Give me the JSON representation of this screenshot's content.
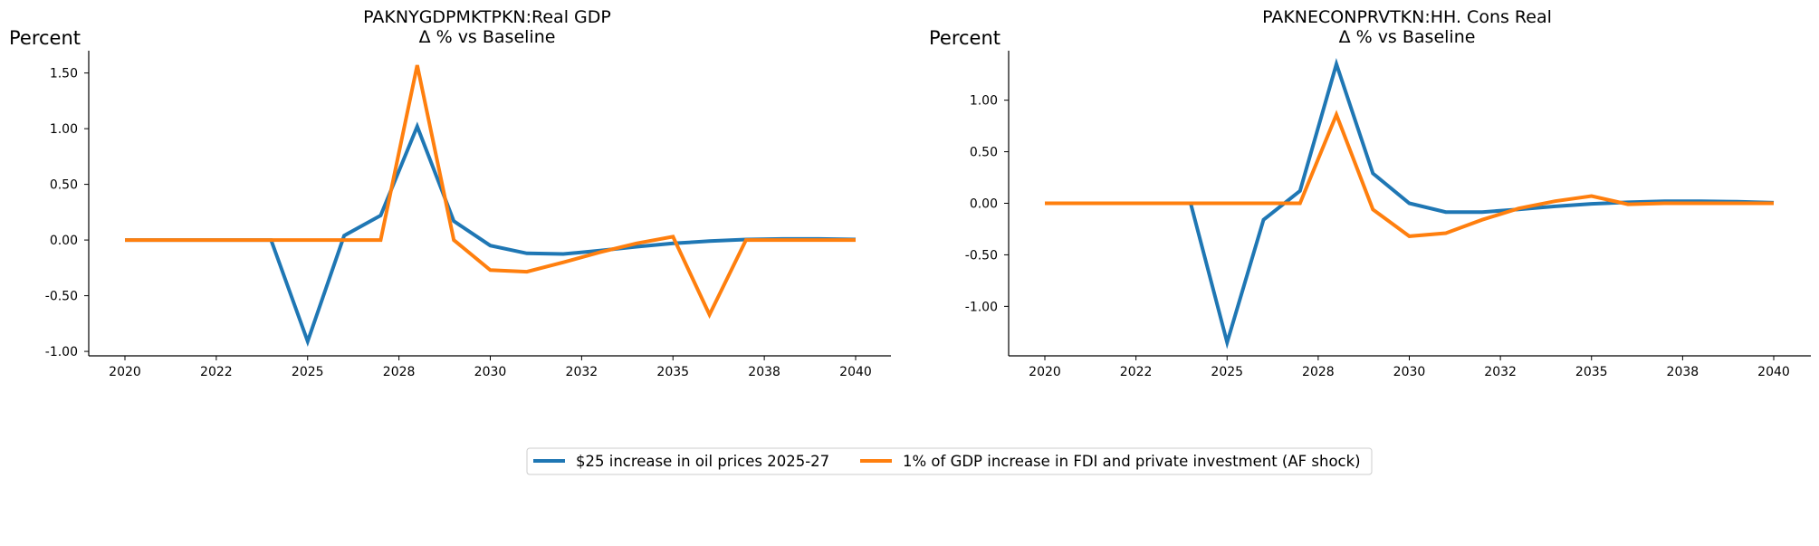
{
  "colors": {
    "series1": "#1f77b4",
    "series2": "#ff7f0e",
    "axis": "#000000"
  },
  "legend": {
    "placement": "bottom-center",
    "entries": [
      "$25 increase in oil prices 2025-27",
      "1% of GDP increase in FDI and private investment (AF shock)"
    ]
  },
  "chart_data": [
    {
      "type": "line",
      "title": "PAKNYGDPMKTPKN:Real GDP",
      "subtitle": "Δ % vs Baseline",
      "ylabel": "Percent",
      "xlabel": "",
      "xlim": [
        2020,
        2040
      ],
      "ylim": [
        -1.04,
        1.7
      ],
      "xticks": [
        2020,
        2022.5,
        2025,
        2027.5,
        2030,
        2032.5,
        2035,
        2037.5,
        2040
      ],
      "xtick_labels": [
        "2020",
        "2022",
        "2025",
        "2028",
        "2030",
        "2032",
        "2035",
        "2038",
        "2040"
      ],
      "yticks": [
        1.5,
        1.0,
        0.5,
        0.0,
        -0.5,
        -1.0
      ],
      "ytick_labels": [
        "1.50",
        "1.00",
        "0.50",
        "0.00",
        "-0.50",
        "-1.00"
      ],
      "grid": false,
      "x": [
        2020,
        2021,
        2022,
        2023,
        2024,
        2025,
        2026,
        2027,
        2028,
        2029,
        2030,
        2031,
        2032,
        2033,
        2034,
        2035,
        2036,
        2037,
        2038,
        2039,
        2040
      ],
      "series": [
        {
          "name": "$25 increase in oil prices 2025-27",
          "values": [
            0,
            0,
            0,
            0,
            0,
            -0.91,
            0.04,
            0.22,
            1.02,
            0.17,
            -0.05,
            -0.12,
            -0.125,
            -0.095,
            -0.06,
            -0.03,
            -0.01,
            0.005,
            0.01,
            0.01,
            0.005
          ]
        },
        {
          "name": "1% of GDP increase in FDI and private investment (AF shock)",
          "values": [
            0,
            0,
            0,
            0,
            0,
            0,
            0,
            0,
            1.57,
            0.0,
            -0.27,
            -0.285,
            -0.2,
            -0.11,
            -0.03,
            0.03,
            -0.67,
            0.0,
            0.0,
            0.0,
            0.0
          ]
        }
      ]
    },
    {
      "type": "line",
      "title": "PAKNECONPRVTKN:HH. Cons Real",
      "subtitle": "Δ % vs Baseline",
      "ylabel": "Percent",
      "xlabel": "",
      "xlim": [
        2020,
        2040
      ],
      "ylim": [
        -1.48,
        1.48
      ],
      "xticks": [
        2020,
        2022.5,
        2025,
        2027.5,
        2030,
        2032.5,
        2035,
        2037.5,
        2040
      ],
      "xtick_labels": [
        "2020",
        "2022",
        "2025",
        "2028",
        "2030",
        "2032",
        "2035",
        "2038",
        "2040"
      ],
      "yticks": [
        1.0,
        0.5,
        0.0,
        -0.5,
        -1.0
      ],
      "ytick_labels": [
        "1.00",
        "0.50",
        "0.00",
        "-0.50",
        "-1.00"
      ],
      "grid": false,
      "x": [
        2020,
        2021,
        2022,
        2023,
        2024,
        2025,
        2026,
        2027,
        2028,
        2029,
        2030,
        2031,
        2032,
        2033,
        2034,
        2035,
        2036,
        2037,
        2038,
        2039,
        2040
      ],
      "series": [
        {
          "name": "$25 increase in oil prices 2025-27",
          "values": [
            0,
            0,
            0,
            0,
            0,
            -1.35,
            -0.16,
            0.12,
            1.35,
            0.29,
            0.0,
            -0.085,
            -0.085,
            -0.06,
            -0.03,
            -0.005,
            0.01,
            0.02,
            0.02,
            0.015,
            0.005
          ]
        },
        {
          "name": "1% of GDP increase in FDI and private investment (AF shock)",
          "values": [
            0,
            0,
            0,
            0,
            0,
            0,
            0,
            0,
            0.86,
            -0.06,
            -0.32,
            -0.29,
            -0.16,
            -0.05,
            0.02,
            0.07,
            -0.01,
            0.0,
            0.0,
            0.0,
            0.0
          ]
        }
      ]
    }
  ]
}
